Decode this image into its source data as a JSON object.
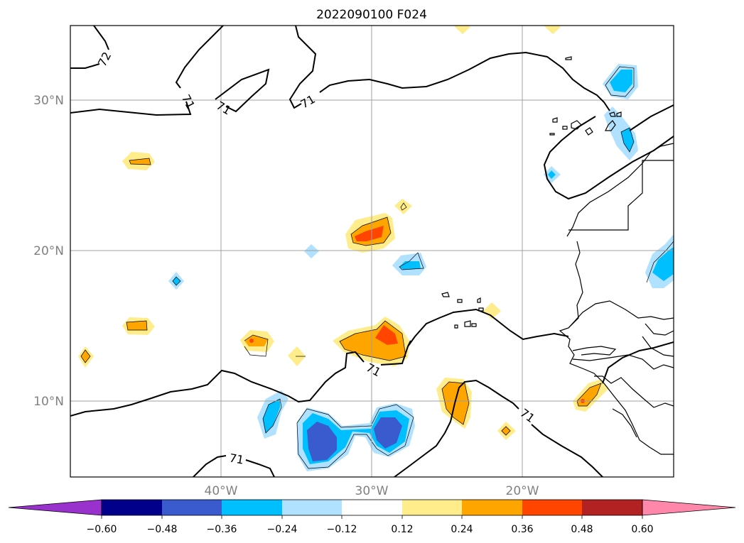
{
  "map": {
    "title": "2022090100 F024",
    "latitude_labels": [
      "30°N",
      "20°N",
      "10°N"
    ],
    "longitude_labels": [
      "40°W",
      "30°W",
      "20°W"
    ],
    "contour_labels": [
      "72",
      "71",
      "71",
      "71",
      "71",
      "71",
      "71"
    ]
  },
  "colorbar": {
    "ticks": [
      "−0.60",
      "−0.48",
      "−0.36",
      "−0.24",
      "−0.12",
      "0.12",
      "0.24",
      "0.36",
      "0.48",
      "0.60"
    ],
    "colors": [
      "#9932cc",
      "#00008b",
      "#3a5bcd",
      "#00bfff",
      "#b0e2ff",
      "#ffffff",
      "#ffec8b",
      "#ffa500",
      "#ff4500",
      "#b22222",
      "#ff88aa"
    ]
  }
}
